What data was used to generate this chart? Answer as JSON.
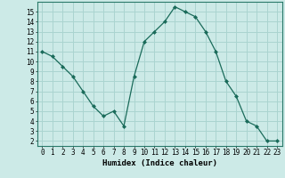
{
  "x": [
    0,
    1,
    2,
    3,
    4,
    5,
    6,
    7,
    8,
    9,
    10,
    11,
    12,
    13,
    14,
    15,
    16,
    17,
    18,
    19,
    20,
    21,
    22,
    23
  ],
  "y": [
    11,
    10.5,
    9.5,
    8.5,
    7,
    5.5,
    4.5,
    5,
    3.5,
    8.5,
    12,
    13,
    14,
    15.5,
    15,
    14.5,
    13,
    11,
    8,
    6.5,
    4,
    3.5,
    2,
    2
  ],
  "line_color": "#1a6b5a",
  "marker": "D",
  "marker_size": 2,
  "bg_color": "#cceae7",
  "grid_color": "#aad4d0",
  "xlabel": "Humidex (Indice chaleur)",
  "ylabel": "",
  "xlim": [
    -0.5,
    23.5
  ],
  "ylim": [
    1.5,
    16
  ],
  "yticks": [
    2,
    3,
    4,
    5,
    6,
    7,
    8,
    9,
    10,
    11,
    12,
    13,
    14,
    15
  ],
  "xticks": [
    0,
    1,
    2,
    3,
    4,
    5,
    6,
    7,
    8,
    9,
    10,
    11,
    12,
    13,
    14,
    15,
    16,
    17,
    18,
    19,
    20,
    21,
    22,
    23
  ],
  "xtick_labels": [
    "0",
    "1",
    "2",
    "3",
    "4",
    "5",
    "6",
    "7",
    "8",
    "9",
    "10",
    "11",
    "12",
    "13",
    "14",
    "15",
    "16",
    "17",
    "18",
    "19",
    "20",
    "21",
    "22",
    "23"
  ],
  "tick_fontsize": 5.5,
  "label_fontsize": 6.5
}
